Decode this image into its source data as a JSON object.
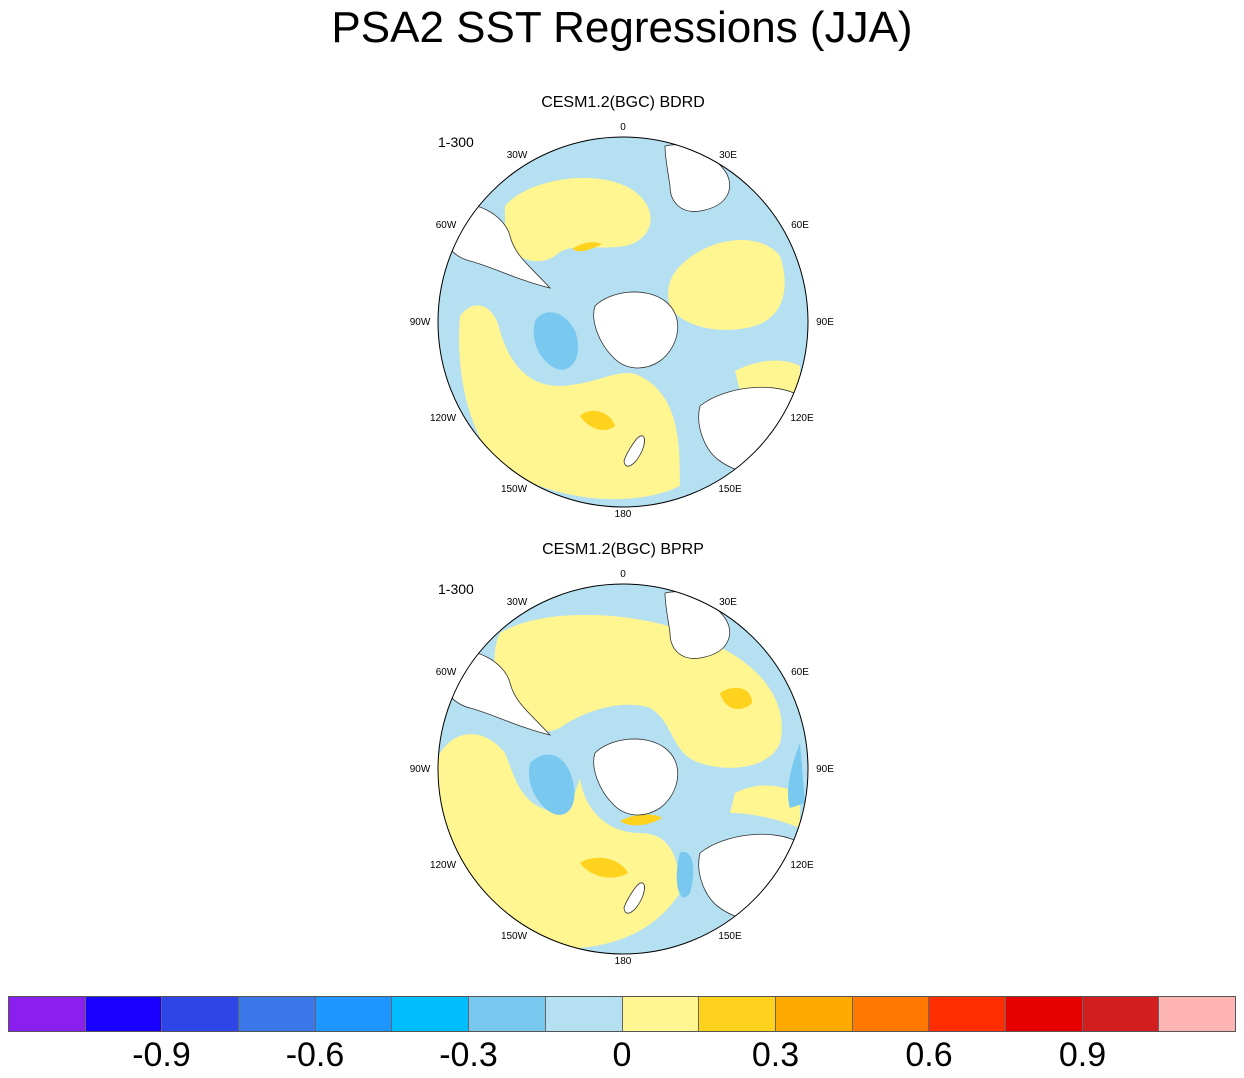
{
  "title": "PSA2 SST Regressions (JJA)",
  "panels": [
    {
      "title": "CESM1.2(BGC) BDRD",
      "years": "1-300",
      "lon_labels": {
        "n": "0",
        "ne": "30E",
        "ene": "60E",
        "e": "90E",
        "ese": "120E",
        "se": "150E",
        "s": "180",
        "sw": "150W",
        "wsw": "120W",
        "w": "90W",
        "wnw": "60W",
        "nw": "30W"
      }
    },
    {
      "title": "CESM1.2(BGC) BPRP",
      "years": "1-300",
      "lon_labels": {
        "n": "0",
        "ne": "30E",
        "ene": "60E",
        "e": "90E",
        "ese": "120E",
        "se": "150E",
        "s": "180",
        "sw": "150W",
        "wsw": "120W",
        "w": "90W",
        "wnw": "60W",
        "nw": "30W"
      }
    }
  ],
  "colorbar": {
    "colors": [
      "#8a1ff0",
      "#1a00ff",
      "#2e46e8",
      "#3a78ea",
      "#1e96ff",
      "#00beff",
      "#78c8f0",
      "#b4e0f2",
      "#fff591",
      "#ffd21e",
      "#ffaa00",
      "#ff7800",
      "#ff2d00",
      "#e60000",
      "#d21e1e",
      "#ffb4b4"
    ],
    "labels": [
      "-0.9",
      "-0.6",
      "-0.3",
      "0",
      "0.3",
      "0.6",
      "0.9"
    ]
  },
  "map_colors": {
    "ocean_neg": "#b4e0f2",
    "ocean_pos": "#fff591",
    "strong_neg": "#78c8f0",
    "strong_pos": "#ffd21e",
    "land": "#ffffff"
  }
}
